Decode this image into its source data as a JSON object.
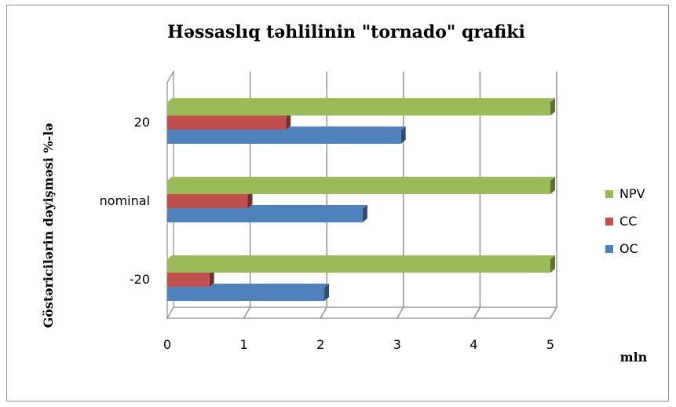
{
  "chart_data": {
    "type": "bar",
    "orientation": "horizontal",
    "title": "Həssaslıq təhlilinin \"tornado\" qrafiki",
    "ylabel": "Göstəricilərin dəyişməsi %-lə",
    "xlabel": "mln",
    "categories": [
      "-20",
      "nominal",
      "20"
    ],
    "xlim": [
      0,
      5
    ],
    "xticks": [
      "0",
      "1",
      "2",
      "3",
      "4",
      "5"
    ],
    "grid": true,
    "legend_position": "right",
    "series": [
      {
        "name": "OC",
        "color": "#4f81bd",
        "values": [
          2.05,
          2.55,
          3.05
        ]
      },
      {
        "name": "CC",
        "color": "#c0504d",
        "values": [
          0.55,
          1.05,
          1.55
        ]
      },
      {
        "name": "NPV",
        "color": "#9bbb59",
        "values": [
          5.0,
          5.0,
          5.0
        ]
      }
    ],
    "legend_order": [
      "NPV",
      "CC",
      "OC"
    ]
  }
}
